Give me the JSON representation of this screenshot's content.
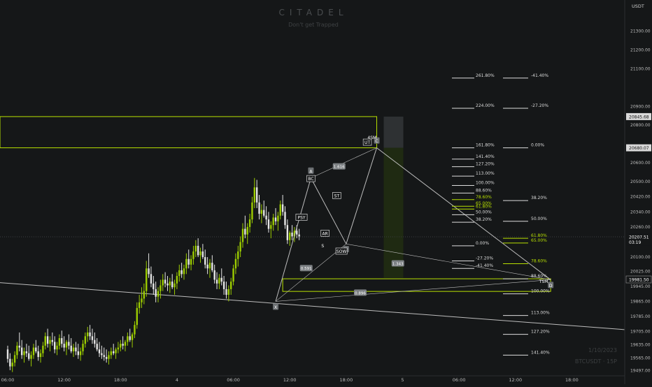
{
  "header": {
    "watermark": "CITADEL",
    "subtitle": "Don't get Trapped",
    "footer_date": "1/10/2023",
    "footer_symbol": "BTCUSDT · 15P"
  },
  "colors": {
    "background": "#151718",
    "bull": "#9ccc00",
    "bear": "#e6e6e6",
    "accent": "#b8e000",
    "line": "#bdbdbd",
    "fib_white": "#dcdcdc"
  },
  "chart_data": {
    "type": "candlestick",
    "symbol": "BTCUSDT",
    "timeframe": "15",
    "currency_label": "USDT",
    "ylim": [
      19470,
      21420
    ],
    "price_ticks": [
      21300,
      21200,
      21100,
      20900,
      20800,
      20600,
      20500,
      20420,
      20340,
      20260,
      20100,
      20025,
      19945,
      19865,
      19785,
      19705,
      19635,
      19565,
      19497
    ],
    "time_ticks": [
      {
        "label": "06:00",
        "t": 0
      },
      {
        "label": "12:00",
        "t": 24
      },
      {
        "label": "18:00",
        "t": 48
      },
      {
        "label": "4",
        "t": 72
      },
      {
        "label": "06:00",
        "t": 96
      },
      {
        "label": "12:00",
        "t": 120
      },
      {
        "label": "18:00",
        "t": 144
      },
      {
        "label": "5",
        "t": 168
      },
      {
        "label": "06:00",
        "t": 192
      },
      {
        "label": "12:00",
        "t": 216
      },
      {
        "label": "18:00",
        "t": 240
      }
    ],
    "price_tags": [
      {
        "value": 20845.68,
        "text": "20845.68",
        "style": "white"
      },
      {
        "value": 20680.07,
        "text": "20680.07",
        "style": "white"
      },
      {
        "value": 20207.51,
        "text": "20207.51",
        "sub": "03:19",
        "style": "dark"
      },
      {
        "value": 19981.5,
        "text": "19981.50",
        "style": "dark-border"
      }
    ],
    "fib_left": [
      {
        "label": "261.80%",
        "value": 21050,
        "color": "white"
      },
      {
        "label": "224.00%",
        "value": 20890,
        "color": "white"
      },
      {
        "label": "161.80%",
        "value": 20680,
        "color": "white"
      },
      {
        "label": "141.40%",
        "value": 20620,
        "color": "white"
      },
      {
        "label": "127.20%",
        "value": 20580,
        "color": "white"
      },
      {
        "label": "113.00%",
        "value": 20530,
        "color": "white"
      },
      {
        "label": "100.00%",
        "value": 20480,
        "color": "white"
      },
      {
        "label": "88.60%",
        "value": 20440,
        "color": "white"
      },
      {
        "label": "78.60%",
        "value": 20405,
        "color": "green"
      },
      {
        "label": "65.00%",
        "value": 20370,
        "color": "green"
      },
      {
        "label": "61.80%",
        "value": 20355,
        "color": "green"
      },
      {
        "label": "50.00%",
        "value": 20325,
        "color": "white"
      },
      {
        "label": "38.20%",
        "value": 20285,
        "color": "white"
      },
      {
        "label": "0.00%",
        "value": 20160,
        "color": "white"
      },
      {
        "label": "-27.20%",
        "value": 20080,
        "color": "white"
      },
      {
        "label": "-41.40%",
        "value": 20040,
        "color": "white"
      }
    ],
    "fib_right": [
      {
        "label": "-41.40%",
        "value": 21050,
        "color": "white"
      },
      {
        "label": "-27.20%",
        "value": 20890,
        "color": "white"
      },
      {
        "label": "0.00%",
        "value": 20680,
        "color": "white"
      },
      {
        "label": "38.20%",
        "value": 20400,
        "color": "white"
      },
      {
        "label": "50.00%",
        "value": 20290,
        "color": "white"
      },
      {
        "label": "61.80%",
        "value": 20200,
        "color": "green"
      },
      {
        "label": "65.00%",
        "value": 20175,
        "color": "green"
      },
      {
        "label": "78.60%",
        "value": 20065,
        "color": "green"
      },
      {
        "label": "88.60%",
        "value": 19985,
        "color": "white"
      },
      {
        "label": "100.00%",
        "value": 19905,
        "color": "white"
      },
      {
        "label": "113.00%",
        "value": 19790,
        "color": "white"
      },
      {
        "label": "127.20%",
        "value": 19690,
        "color": "white"
      },
      {
        "label": "141.40%",
        "value": 19580,
        "color": "white"
      }
    ],
    "zones": [
      {
        "name": "supply-zone",
        "t0": -20,
        "t1": 157,
        "p_top": 20845.68,
        "p_bot": 20680.07
      },
      {
        "name": "demand-zone",
        "t0": 117,
        "t1": 231,
        "p_top": 19985,
        "p_bot": 19918
      }
    ],
    "pattern_points": [
      {
        "label": "X",
        "t": 114,
        "p": 19865
      },
      {
        "label": "A",
        "t": 129,
        "p": 20520
      },
      {
        "label": "B",
        "t": 144,
        "p": 20170
      },
      {
        "label": "C",
        "t": 157,
        "p": 20680
      },
      {
        "label": "D",
        "t": 231,
        "p": 19980
      }
    ],
    "ratios": [
      {
        "text": "1.616",
        "t": 141,
        "p": 20580
      },
      {
        "text": "0.591",
        "t": 127,
        "p": 20040
      },
      {
        "text": "1.343",
        "t": 166,
        "p": 20065
      },
      {
        "text": "0.896",
        "t": 150,
        "p": 19910
      }
    ],
    "wyckoff_labels": [
      {
        "text": "BC",
        "t": 129,
        "p": 20515
      },
      {
        "text": "PSY",
        "t": 125,
        "p": 20310
      },
      {
        "text": "ST",
        "t": 140,
        "p": 20425
      },
      {
        "text": "AR",
        "t": 135,
        "p": 20225
      },
      {
        "text": "S",
        "t": 134,
        "p": 20160
      },
      {
        "text": "SOW",
        "t": 142,
        "p": 20130
      },
      {
        "text": "4SM",
        "t": 155,
        "p": 20735
      },
      {
        "text": "UT",
        "t": 153,
        "p": 20708
      },
      {
        "text": "TSM",
        "t": 228,
        "p": 19970
      }
    ],
    "trendline": {
      "t0": -20,
      "p0": 19980,
      "t1": 300,
      "p1": 19680
    },
    "candles": [
      [
        19610,
        19630,
        19540,
        19560
      ],
      [
        19560,
        19590,
        19500,
        19520
      ],
      [
        19520,
        19560,
        19490,
        19540
      ],
      [
        19540,
        19600,
        19520,
        19580
      ],
      [
        19580,
        19650,
        19560,
        19630
      ],
      [
        19630,
        19700,
        19600,
        19620
      ],
      [
        19620,
        19660,
        19560,
        19580
      ],
      [
        19580,
        19620,
        19540,
        19600
      ],
      [
        19600,
        19640,
        19570,
        19590
      ],
      [
        19590,
        19630,
        19550,
        19560
      ],
      [
        19560,
        19600,
        19520,
        19580
      ],
      [
        19580,
        19640,
        19560,
        19620
      ],
      [
        19620,
        19660,
        19590,
        19600
      ],
      [
        19600,
        19630,
        19550,
        19570
      ],
      [
        19570,
        19610,
        19540,
        19590
      ],
      [
        19590,
        19650,
        19570,
        19630
      ],
      [
        19630,
        19700,
        19610,
        19680
      ],
      [
        19680,
        19720,
        19620,
        19640
      ],
      [
        19640,
        19680,
        19600,
        19660
      ],
      [
        19660,
        19700,
        19630,
        19650
      ],
      [
        19650,
        19680,
        19590,
        19610
      ],
      [
        19610,
        19650,
        19580,
        19630
      ],
      [
        19630,
        19690,
        19610,
        19670
      ],
      [
        19670,
        19710,
        19620,
        19640
      ],
      [
        19640,
        19680,
        19600,
        19620
      ],
      [
        19620,
        19660,
        19580,
        19650
      ],
      [
        19650,
        19690,
        19610,
        19630
      ],
      [
        19630,
        19670,
        19590,
        19600
      ],
      [
        19600,
        19640,
        19570,
        19620
      ],
      [
        19620,
        19650,
        19580,
        19600
      ],
      [
        19600,
        19640,
        19560,
        19580
      ],
      [
        19580,
        19620,
        19550,
        19600
      ],
      [
        19600,
        19660,
        19580,
        19640
      ],
      [
        19640,
        19700,
        19620,
        19680
      ],
      [
        19680,
        19730,
        19650,
        19700
      ],
      [
        19700,
        19740,
        19660,
        19680
      ],
      [
        19680,
        19720,
        19640,
        19660
      ],
      [
        19660,
        19700,
        19620,
        19640
      ],
      [
        19640,
        19670,
        19600,
        19610
      ],
      [
        19610,
        19650,
        19570,
        19590
      ],
      [
        19590,
        19630,
        19560,
        19580
      ],
      [
        19580,
        19620,
        19550,
        19570
      ],
      [
        19570,
        19610,
        19540,
        19560
      ],
      [
        19560,
        19600,
        19530,
        19580
      ],
      [
        19580,
        19620,
        19560,
        19600
      ],
      [
        19600,
        19640,
        19580,
        19590
      ],
      [
        19590,
        19620,
        19560,
        19610
      ],
      [
        19610,
        19650,
        19590,
        19620
      ],
      [
        19620,
        19660,
        19600,
        19640
      ],
      [
        19640,
        19680,
        19610,
        19630
      ],
      [
        19630,
        19660,
        19600,
        19650
      ],
      [
        19650,
        19700,
        19630,
        19680
      ],
      [
        19680,
        19720,
        19650,
        19660
      ],
      [
        19660,
        19700,
        19620,
        19690
      ],
      [
        19690,
        19760,
        19670,
        19740
      ],
      [
        19740,
        19860,
        19720,
        19830
      ],
      [
        19830,
        19900,
        19800,
        19860
      ],
      [
        19860,
        19940,
        19830,
        19880
      ],
      [
        19880,
        19960,
        19850,
        19920
      ],
      [
        19920,
        20080,
        19890,
        20040
      ],
      [
        20040,
        20120,
        19990,
        20010
      ],
      [
        20010,
        20050,
        19940,
        19960
      ],
      [
        19960,
        20000,
        19900,
        19930
      ],
      [
        19930,
        19970,
        19860,
        19890
      ],
      [
        19890,
        19940,
        19860,
        19920
      ],
      [
        19920,
        19980,
        19880,
        19950
      ],
      [
        19950,
        20010,
        19920,
        19980
      ],
      [
        19980,
        20020,
        19940,
        19960
      ],
      [
        19960,
        20000,
        19920,
        19950
      ],
      [
        19950,
        19990,
        19910,
        19970
      ],
      [
        19970,
        20010,
        19930,
        19940
      ],
      [
        19940,
        19980,
        19900,
        19960
      ],
      [
        19960,
        20020,
        19930,
        20000
      ],
      [
        20000,
        20060,
        19970,
        20030
      ],
      [
        20030,
        20070,
        19990,
        20010
      ],
      [
        20010,
        20060,
        19980,
        20040
      ],
      [
        20040,
        20120,
        20010,
        20090
      ],
      [
        20090,
        20140,
        20040,
        20060
      ],
      [
        20060,
        20110,
        20030,
        20090
      ],
      [
        20090,
        20160,
        20060,
        20130
      ],
      [
        20130,
        20190,
        20100,
        20160
      ],
      [
        20160,
        20200,
        20100,
        20110
      ],
      [
        20110,
        20150,
        20070,
        20130
      ],
      [
        20130,
        20170,
        20090,
        20100
      ],
      [
        20100,
        20140,
        20040,
        20060
      ],
      [
        20060,
        20100,
        20010,
        20040
      ],
      [
        20040,
        20090,
        19990,
        20070
      ],
      [
        20070,
        20110,
        20020,
        20030
      ],
      [
        20030,
        20060,
        19960,
        19980
      ],
      [
        19980,
        20020,
        19930,
        19960
      ],
      [
        19960,
        20010,
        19930,
        19990
      ],
      [
        19990,
        20040,
        19950,
        19970
      ],
      [
        19970,
        20000,
        19900,
        19930
      ],
      [
        19930,
        19970,
        19880,
        19900
      ],
      [
        19900,
        19950,
        19865,
        19930
      ],
      [
        19930,
        19990,
        19900,
        19970
      ],
      [
        19970,
        20060,
        19950,
        20040
      ],
      [
        20040,
        20120,
        20010,
        20090
      ],
      [
        20090,
        20160,
        20050,
        20130
      ],
      [
        20130,
        20210,
        20100,
        20180
      ],
      [
        20180,
        20280,
        20150,
        20250
      ],
      [
        20250,
        20320,
        20200,
        20220
      ],
      [
        20220,
        20280,
        20170,
        20260
      ],
      [
        20260,
        20330,
        20230,
        20300
      ],
      [
        20300,
        20420,
        20280,
        20390
      ],
      [
        20390,
        20520,
        20360,
        20470
      ],
      [
        20470,
        20510,
        20360,
        20390
      ],
      [
        20390,
        20430,
        20300,
        20330
      ],
      [
        20330,
        20380,
        20280,
        20350
      ],
      [
        20350,
        20400,
        20310,
        20320
      ],
      [
        20320,
        20370,
        20270,
        20300
      ],
      [
        20300,
        20340,
        20230,
        20250
      ],
      [
        20250,
        20290,
        20200,
        20270
      ],
      [
        20270,
        20330,
        20240,
        20310
      ],
      [
        20310,
        20360,
        20270,
        20290
      ],
      [
        20290,
        20340,
        20240,
        20320
      ],
      [
        20320,
        20400,
        20300,
        20380
      ],
      [
        20380,
        20430,
        20320,
        20340
      ],
      [
        20340,
        20370,
        20250,
        20270
      ],
      [
        20270,
        20300,
        20170,
        20190
      ],
      [
        20190,
        20240,
        20160,
        20230
      ],
      [
        20230,
        20270,
        20190,
        20210
      ],
      [
        20210,
        20260,
        20180,
        20240
      ],
      [
        20240,
        20270,
        20200,
        20220
      ],
      [
        20220,
        20250,
        20190,
        20210
      ]
    ]
  }
}
